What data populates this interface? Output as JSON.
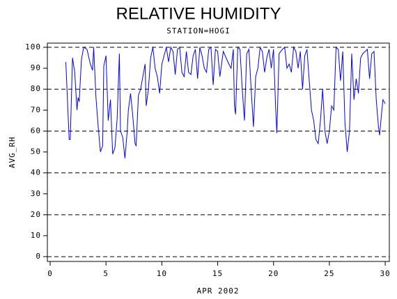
{
  "chart_data": {
    "type": "line",
    "title": "RELATIVE HUMIDITY",
    "subtitle": "STATION=HOGI",
    "x_label": "APR 2002",
    "y_label": "AVG_RH",
    "xlim": [
      -0.25,
      30.37
    ],
    "xticks": [
      0,
      5,
      10,
      15,
      20,
      25,
      30
    ],
    "ylim": [
      -2.3,
      102
    ],
    "yticks": [
      0,
      10,
      20,
      30,
      40,
      50,
      60,
      70,
      80,
      90,
      100
    ],
    "grid_values": [
      0,
      20,
      40,
      60,
      80,
      100
    ],
    "grid": true,
    "series": [
      {
        "name": "AVG_RH",
        "color": "#0000ff",
        "x": [
          1.4,
          1.7,
          1.8,
          2.0,
          2.2,
          2.4,
          2.5,
          2.6,
          2.8,
          3.0,
          3.3,
          3.6,
          3.8,
          3.9,
          4.1,
          4.3,
          4.5,
          4.7,
          4.8,
          5.0,
          5.2,
          5.4,
          5.6,
          5.8,
          6.0,
          6.2,
          6.3,
          6.5,
          6.7,
          6.9,
          7.0,
          7.2,
          7.4,
          7.6,
          7.7,
          7.9,
          8.1,
          8.3,
          8.5,
          8.6,
          8.8,
          9.0,
          9.2,
          9.4,
          9.6,
          9.8,
          10.0,
          10.2,
          10.4,
          10.6,
          10.8,
          11.0,
          11.2,
          11.4,
          11.6,
          11.8,
          12.0,
          12.2,
          12.4,
          12.6,
          12.8,
          13.0,
          13.2,
          13.4,
          13.6,
          13.8,
          14.0,
          14.2,
          14.4,
          14.6,
          14.8,
          15.0,
          15.2,
          15.5,
          16.0,
          16.2,
          16.4,
          16.5,
          16.6,
          16.8,
          17.0,
          17.2,
          17.4,
          17.6,
          17.8,
          18.0,
          18.2,
          18.4,
          18.6,
          18.8,
          19.0,
          19.2,
          19.4,
          19.6,
          19.8,
          20.0,
          20.2,
          20.3,
          20.5,
          20.8,
          21.0,
          21.2,
          21.4,
          21.6,
          21.8,
          22.0,
          22.2,
          22.4,
          22.6,
          22.8,
          23.0,
          23.2,
          23.4,
          23.6,
          23.8,
          24.0,
          24.2,
          24.4,
          24.6,
          24.8,
          25.0,
          25.2,
          25.4,
          25.6,
          25.8,
          26.0,
          26.2,
          26.4,
          26.6,
          26.8,
          27.0,
          27.2,
          27.4,
          27.6,
          27.8,
          28.0,
          28.2,
          28.4,
          28.6,
          28.8,
          29.0,
          29.2,
          29.4,
          29.5,
          29.7,
          29.8,
          30.0
        ],
        "values": [
          93,
          56,
          56,
          95,
          88,
          70,
          76,
          74,
          94,
          100,
          99,
          92,
          89,
          100,
          76,
          62,
          50,
          53,
          91,
          96,
          65,
          75,
          49,
          52,
          66,
          97,
          60,
          57,
          47,
          60,
          70,
          78,
          67,
          54,
          53,
          77,
          80,
          86,
          92,
          72,
          80,
          95,
          100,
          90,
          86,
          78,
          92,
          96,
          100,
          93,
          100,
          98,
          87,
          99,
          100,
          88,
          86,
          98,
          88,
          87,
          96,
          99,
          85,
          100,
          96,
          90,
          88,
          99,
          100,
          82,
          99,
          98,
          86,
          98,
          92,
          90,
          99,
          72,
          68,
          100,
          99,
          80,
          65,
          97,
          99,
          80,
          62,
          86,
          90,
          100,
          98,
          88,
          95,
          99,
          90,
          99,
          70,
          59,
          97,
          99,
          100,
          90,
          92,
          88,
          100,
          98,
          90,
          98,
          80,
          96,
          99,
          84,
          70,
          65,
          56,
          54,
          65,
          80,
          60,
          54,
          60,
          72,
          70,
          100,
          99,
          84,
          98,
          64,
          50,
          60,
          97,
          75,
          85,
          78,
          95,
          97,
          98,
          99,
          85,
          97,
          98,
          75,
          62,
          58,
          70,
          75,
          73
        ]
      }
    ]
  }
}
